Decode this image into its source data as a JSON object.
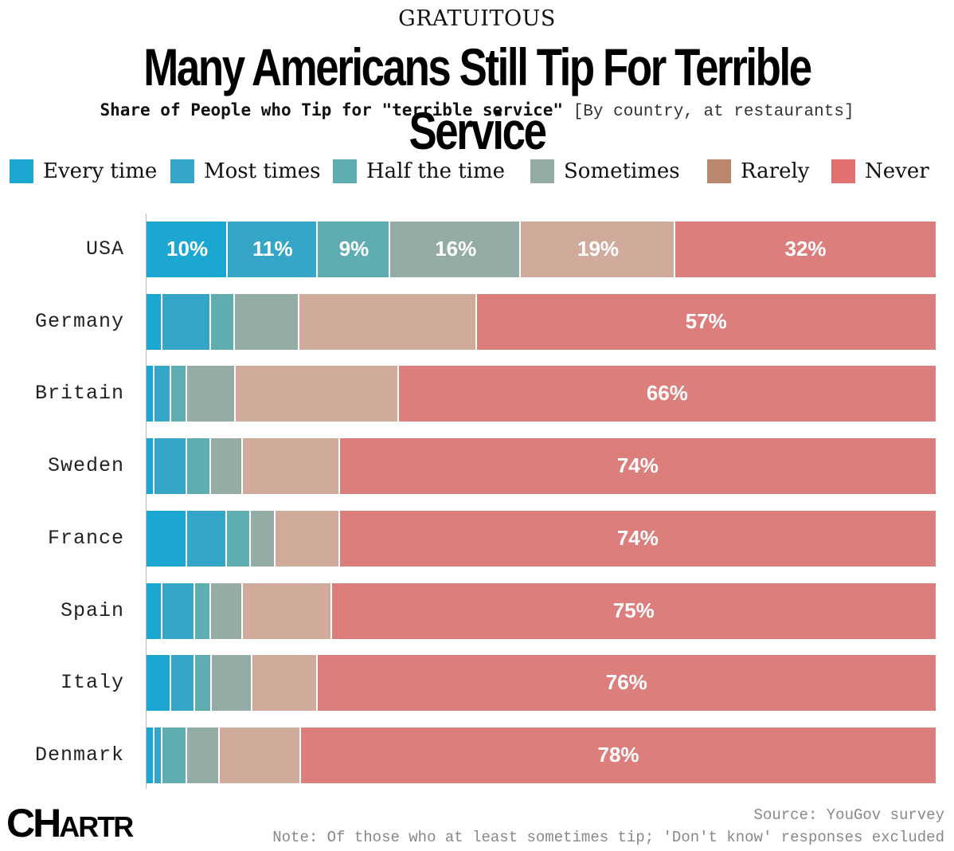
{
  "header": {
    "kicker": "GRATUITOUS",
    "title": "Many Americans Still Tip For Terrible Service",
    "subtitle_bold": "Share of People who Tip for \"terrible service\"",
    "subtitle_regular": "[By country, at restaurants]"
  },
  "footer": {
    "logo": "CHARTR",
    "source": "Source: YouGov survey",
    "note": "Note: Of those who at least sometimes tip; 'Don't know' responses excluded"
  },
  "chart_data": {
    "type": "bar",
    "orientation": "horizontal",
    "stacked": true,
    "title": "Many Americans Still Tip For Terrible Service",
    "xlabel": "",
    "ylabel": "",
    "xlim": [
      0,
      100
    ],
    "legend_position": "top",
    "categories": [
      "USA",
      "Germany",
      "Britain",
      "Sweden",
      "France",
      "Spain",
      "Italy",
      "Denmark"
    ],
    "series": [
      {
        "name": "Every time",
        "color": "#1ba7d1",
        "values": [
          10,
          2,
          1,
          1,
          5,
          2,
          3,
          1
        ]
      },
      {
        "name": "Most times",
        "color": "#36a6c8",
        "values": [
          11,
          6,
          2,
          4,
          5,
          4,
          3,
          1
        ]
      },
      {
        "name": "Half the time",
        "color": "#5eadb1",
        "values": [
          9,
          3,
          2,
          3,
          3,
          2,
          2,
          3
        ]
      },
      {
        "name": "Sometimes",
        "color": "#94aba6",
        "values": [
          16,
          8,
          6,
          4,
          3,
          4,
          5,
          4
        ]
      },
      {
        "name": "Rarely",
        "color": "#d0ab9c",
        "values": [
          19,
          22,
          20,
          12,
          8,
          11,
          8,
          10
        ]
      },
      {
        "name": "Never",
        "color": "#dc7e7c",
        "values": [
          32,
          57,
          66,
          74,
          74,
          75,
          76,
          78
        ]
      }
    ],
    "data_labels": [
      [
        "10%",
        "11%",
        "9%",
        "16%",
        "19%",
        "32%"
      ],
      [
        "",
        "",
        "",
        "",
        "",
        "57%"
      ],
      [
        "",
        "",
        "",
        "",
        "",
        "66%"
      ],
      [
        "",
        "",
        "",
        "",
        "",
        "74%"
      ],
      [
        "",
        "",
        "",
        "",
        "",
        "74%"
      ],
      [
        "",
        "",
        "",
        "",
        "",
        "75%"
      ],
      [
        "",
        "",
        "",
        "",
        "",
        "76%"
      ],
      [
        "",
        "",
        "",
        "",
        "",
        "78%"
      ]
    ],
    "legend_swatch_colors": [
      "#1ba7d1",
      "#36a6c8",
      "#5eadb1",
      "#94aba6",
      "#b9876d",
      "#e1706f"
    ]
  }
}
